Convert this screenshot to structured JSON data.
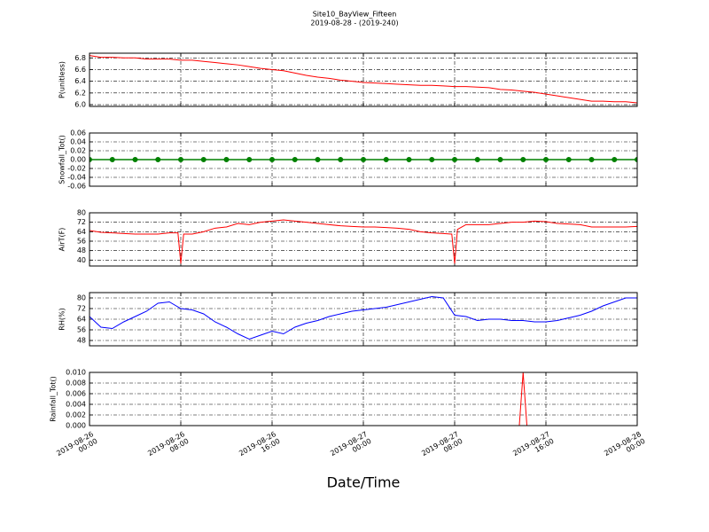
{
  "title": "Site10_BayView_Fifteen",
  "subtitle": "2019-08-28 - (2019-240)",
  "xlabel": "Date/Time",
  "xlim": [
    "2019-08-26 00:00",
    "2019-08-28 00:00"
  ],
  "xticks": [
    {
      "value": "2019-08-26 00:00",
      "label": "2019-08-26\n00:00"
    },
    {
      "value": "2019-08-26 08:00",
      "label": "2019-08-26\n08:00"
    },
    {
      "value": "2019-08-26 16:00",
      "label": "2019-08-26\n16:00"
    },
    {
      "value": "2019-08-27 00:00",
      "label": "2019-08-27\n00:00"
    },
    {
      "value": "2019-08-27 08:00",
      "label": "2019-08-27\n08:00"
    },
    {
      "value": "2019-08-27 16:00",
      "label": "2019-08-27\n16:00"
    },
    {
      "value": "2019-08-28 00:00",
      "label": "2019-08-28\n00:00"
    }
  ],
  "chart_data": [
    {
      "type": "line",
      "ylabel": "P(unitless)",
      "color": "#ff0000",
      "ylim": [
        5.97,
        6.88
      ],
      "yticks": [
        {
          "value": 6,
          "label": "6.0"
        },
        6.2,
        6.4,
        6.6,
        6.8
      ],
      "x": [
        "2019-08-26 00:00",
        "2019-08-26 01:00",
        "2019-08-26 02:00",
        "2019-08-26 03:00",
        "2019-08-26 04:00",
        "2019-08-26 05:00",
        "2019-08-26 06:00",
        "2019-08-26 07:00",
        "2019-08-26 08:00",
        "2019-08-26 09:00",
        "2019-08-26 10:00",
        "2019-08-26 11:00",
        "2019-08-26 12:00",
        "2019-08-26 13:00",
        "2019-08-26 14:00",
        "2019-08-26 15:00",
        "2019-08-26 16:00",
        "2019-08-26 17:00",
        "2019-08-26 18:00",
        "2019-08-26 19:00",
        "2019-08-26 20:00",
        "2019-08-26 21:00",
        "2019-08-26 22:00",
        "2019-08-26 23:00",
        "2019-08-27 00:00",
        "2019-08-27 01:00",
        "2019-08-27 02:00",
        "2019-08-27 03:00",
        "2019-08-27 04:00",
        "2019-08-27 05:00",
        "2019-08-27 06:00",
        "2019-08-27 07:00",
        "2019-08-27 08:00",
        "2019-08-27 09:00",
        "2019-08-27 10:00",
        "2019-08-27 11:00",
        "2019-08-27 12:00",
        "2019-08-27 13:00",
        "2019-08-27 14:00",
        "2019-08-27 15:00",
        "2019-08-27 16:00",
        "2019-08-27 17:00",
        "2019-08-27 18:00",
        "2019-08-27 19:00",
        "2019-08-27 20:00",
        "2019-08-27 21:00",
        "2019-08-27 22:00",
        "2019-08-27 23:00",
        "2019-08-28 00:00"
      ],
      "values": [
        6.84,
        6.81,
        6.81,
        6.8,
        6.8,
        6.78,
        6.78,
        6.78,
        6.76,
        6.76,
        6.74,
        6.72,
        6.7,
        6.68,
        6.65,
        6.62,
        6.6,
        6.58,
        6.54,
        6.5,
        6.47,
        6.45,
        6.42,
        6.4,
        6.38,
        6.37,
        6.36,
        6.35,
        6.34,
        6.33,
        6.33,
        6.32,
        6.31,
        6.31,
        6.3,
        6.29,
        6.26,
        6.25,
        6.23,
        6.21,
        6.18,
        6.15,
        6.12,
        6.09,
        6.06,
        6.06,
        6.05,
        6.05,
        6.03
      ]
    },
    {
      "type": "line",
      "ylabel": "Snowfall_Tot()",
      "color": "#008000",
      "marker": true,
      "ylim": [
        -0.06,
        0.06
      ],
      "yticks": [
        -0.06,
        -0.04,
        -0.02,
        {
          "value": 0,
          "label": "0.00"
        },
        0.02,
        0.04,
        0.06
      ],
      "x": [
        "2019-08-26 00:00",
        "2019-08-26 02:00",
        "2019-08-26 04:00",
        "2019-08-26 06:00",
        "2019-08-26 08:00",
        "2019-08-26 10:00",
        "2019-08-26 12:00",
        "2019-08-26 14:00",
        "2019-08-26 16:00",
        "2019-08-26 18:00",
        "2019-08-26 20:00",
        "2019-08-26 22:00",
        "2019-08-27 00:00",
        "2019-08-27 02:00",
        "2019-08-27 04:00",
        "2019-08-27 06:00",
        "2019-08-27 08:00",
        "2019-08-27 10:00",
        "2019-08-27 12:00",
        "2019-08-27 14:00",
        "2019-08-27 16:00",
        "2019-08-27 18:00",
        "2019-08-27 20:00",
        "2019-08-27 22:00",
        "2019-08-28 00:00"
      ],
      "values": [
        0,
        0,
        0,
        0,
        0,
        0,
        0,
        0,
        0,
        0,
        0,
        0,
        0,
        0,
        0,
        0,
        0,
        0,
        0,
        0,
        0,
        0,
        0,
        0,
        0
      ]
    },
    {
      "type": "line",
      "ylabel": "AirT(F)",
      "color": "#ff0000",
      "ylim": [
        35,
        80
      ],
      "yticks": [
        40,
        48,
        56,
        64,
        72,
        80
      ],
      "x": [
        "2019-08-26 00:00",
        "2019-08-26 01:00",
        "2019-08-26 02:00",
        "2019-08-26 03:00",
        "2019-08-26 04:00",
        "2019-08-26 05:00",
        "2019-08-26 06:00",
        "2019-08-26 07:00",
        "2019-08-26 07:45",
        "2019-08-26 08:00",
        "2019-08-26 08:15",
        "2019-08-26 09:00",
        "2019-08-26 10:00",
        "2019-08-26 11:00",
        "2019-08-26 12:00",
        "2019-08-26 13:00",
        "2019-08-26 14:00",
        "2019-08-26 15:00",
        "2019-08-26 16:00",
        "2019-08-26 17:00",
        "2019-08-26 18:00",
        "2019-08-26 19:00",
        "2019-08-26 20:00",
        "2019-08-26 21:00",
        "2019-08-26 22:00",
        "2019-08-26 23:00",
        "2019-08-27 00:00",
        "2019-08-27 01:00",
        "2019-08-27 02:00",
        "2019-08-27 03:00",
        "2019-08-27 04:00",
        "2019-08-27 05:00",
        "2019-08-27 06:00",
        "2019-08-27 07:00",
        "2019-08-27 07:45",
        "2019-08-27 08:00",
        "2019-08-27 08:15",
        "2019-08-27 09:00",
        "2019-08-27 10:00",
        "2019-08-27 11:00",
        "2019-08-27 12:00",
        "2019-08-27 13:00",
        "2019-08-27 14:00",
        "2019-08-27 15:00",
        "2019-08-27 16:00",
        "2019-08-27 17:00",
        "2019-08-27 18:00",
        "2019-08-27 19:00",
        "2019-08-27 20:00",
        "2019-08-27 21:00",
        "2019-08-27 22:00",
        "2019-08-27 23:00",
        "2019-08-28 00:00"
      ],
      "values": [
        65,
        63.5,
        63,
        62.5,
        62,
        62,
        62,
        63,
        63,
        37,
        62,
        62,
        64,
        67,
        68,
        71,
        70,
        72,
        73,
        74,
        73,
        72,
        71,
        70,
        69,
        68.5,
        68,
        68,
        67.5,
        67,
        66,
        64,
        63,
        62.5,
        62,
        37,
        66,
        70,
        70,
        70,
        71,
        72,
        72,
        73,
        72.5,
        71,
        70.5,
        70,
        68,
        68,
        68,
        68,
        68.5
      ]
    },
    {
      "type": "line",
      "ylabel": "RH(%)",
      "color": "#0000ff",
      "ylim": [
        44,
        84
      ],
      "yticks": [
        48,
        56,
        64,
        72,
        80
      ],
      "x": [
        "2019-08-26 00:00",
        "2019-08-26 01:00",
        "2019-08-26 02:00",
        "2019-08-26 03:00",
        "2019-08-26 04:00",
        "2019-08-26 05:00",
        "2019-08-26 06:00",
        "2019-08-26 07:00",
        "2019-08-26 08:00",
        "2019-08-26 09:00",
        "2019-08-26 10:00",
        "2019-08-26 11:00",
        "2019-08-26 12:00",
        "2019-08-26 13:00",
        "2019-08-26 14:00",
        "2019-08-26 15:00",
        "2019-08-26 16:00",
        "2019-08-26 17:00",
        "2019-08-26 18:00",
        "2019-08-26 19:00",
        "2019-08-26 20:00",
        "2019-08-26 21:00",
        "2019-08-26 22:00",
        "2019-08-26 23:00",
        "2019-08-27 00:00",
        "2019-08-27 01:00",
        "2019-08-27 02:00",
        "2019-08-27 03:00",
        "2019-08-27 04:00",
        "2019-08-27 05:00",
        "2019-08-27 06:00",
        "2019-08-27 07:00",
        "2019-08-27 08:00",
        "2019-08-27 09:00",
        "2019-08-27 10:00",
        "2019-08-27 11:00",
        "2019-08-27 12:00",
        "2019-08-27 13:00",
        "2019-08-27 14:00",
        "2019-08-27 15:00",
        "2019-08-27 16:00",
        "2019-08-27 17:00",
        "2019-08-27 18:00",
        "2019-08-27 19:00",
        "2019-08-27 20:00",
        "2019-08-27 21:00",
        "2019-08-27 22:00",
        "2019-08-27 23:00",
        "2019-08-28 00:00"
      ],
      "values": [
        66,
        58,
        57,
        62,
        66,
        70,
        76,
        77,
        72,
        71,
        68,
        62,
        58,
        53,
        49,
        52,
        55,
        53,
        58,
        61,
        63,
        66,
        68,
        70,
        71,
        72,
        73,
        75,
        77,
        79,
        81,
        80,
        67,
        66,
        63,
        64,
        64,
        63,
        63,
        62,
        62,
        63,
        65,
        67,
        70,
        74,
        77,
        80,
        80
      ]
    },
    {
      "type": "line",
      "ylabel": "Rainfall_Tot()",
      "color": "#ff0000",
      "ylim": [
        0,
        0.01
      ],
      "yticks": [
        {
          "value": 0,
          "label": "0.000"
        },
        {
          "value": 0.002,
          "label": "0.002"
        },
        {
          "value": 0.004,
          "label": "0.004"
        },
        {
          "value": 0.006,
          "label": "0.006"
        },
        {
          "value": 0.008,
          "label": "0.008"
        },
        {
          "value": 0.01,
          "label": "0.010"
        }
      ],
      "x": [
        "2019-08-26 00:00",
        "2019-08-27 13:40",
        "2019-08-27 14:00",
        "2019-08-27 14:20",
        "2019-08-28 00:00"
      ],
      "values": [
        0,
        0,
        0.01,
        0,
        0
      ]
    }
  ]
}
